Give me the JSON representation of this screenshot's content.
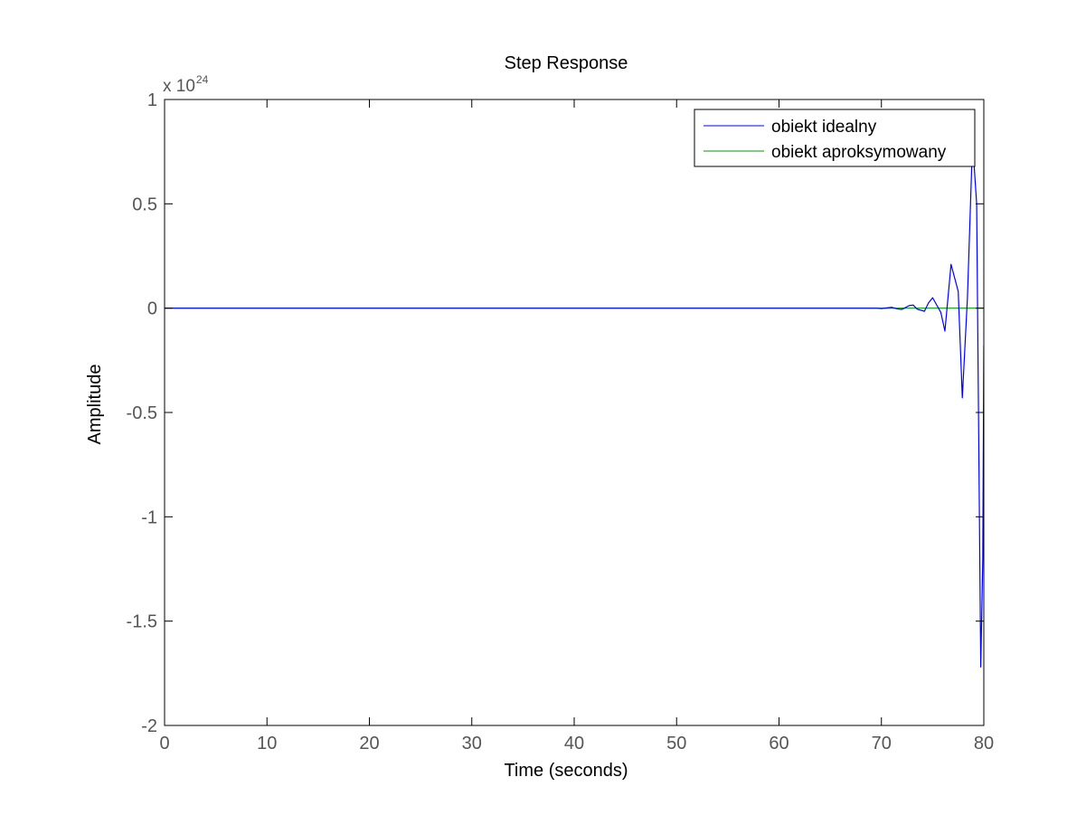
{
  "chart_data": {
    "type": "line",
    "title": "Step Response",
    "xlabel": "Time (seconds)",
    "ylabel": "Amplitude",
    "xlim": [
      0,
      80
    ],
    "ylim": [
      -2,
      1
    ],
    "y_scale_base": "x 10",
    "y_scale_exponent": "24",
    "xticks": [
      0,
      10,
      20,
      30,
      40,
      50,
      60,
      70,
      80
    ],
    "xtick_labels": [
      "0",
      "10",
      "20",
      "30",
      "40",
      "50",
      "60",
      "70",
      "80"
    ],
    "yticks": [
      -2,
      -1.5,
      -1,
      -0.5,
      0,
      0.5,
      1
    ],
    "ytick_labels": [
      "-2",
      "-1.5",
      "-1",
      "-0.5",
      "0",
      "0.5",
      "1"
    ],
    "grid": false,
    "legend_position": "top-right",
    "series": [
      {
        "name": "obiekt idealny",
        "color": "#0000ff",
        "x": [
          0,
          69.5,
          70,
          71,
          71.5,
          72,
          72.7,
          73.1,
          73.5,
          74.2,
          74.6,
          75.0,
          75.8,
          76.2,
          76.8,
          77.5,
          77.9,
          78.4,
          78.9,
          79.3,
          79.7,
          79.9,
          80.0
        ],
        "values": [
          0,
          0,
          -0.002,
          0.004,
          -0.003,
          -0.006,
          0.012,
          0.015,
          -0.005,
          -0.015,
          0.025,
          0.05,
          -0.02,
          -0.11,
          0.21,
          0.08,
          -0.43,
          0.05,
          0.8,
          0.5,
          -1.72,
          -1.2,
          -0.18
        ]
      },
      {
        "name": "obiekt aproksymowany",
        "color": "#009900",
        "x": [
          0,
          80
        ],
        "values": [
          0,
          0
        ]
      }
    ]
  }
}
